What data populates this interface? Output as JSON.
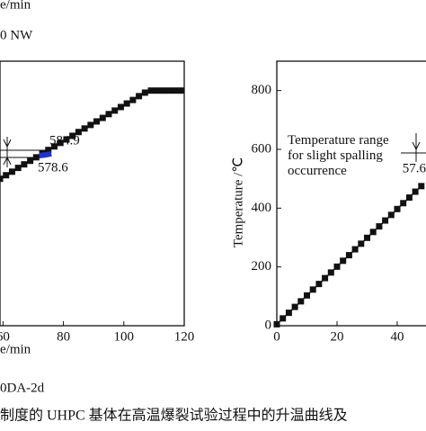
{
  "chart_data": [
    {
      "type": "line",
      "xlabel": "e/min",
      "top_label": "e/min",
      "legend_text": "0 NW",
      "figure_tag": "0DA-2d",
      "xlim": [
        59,
        120
      ],
      "xticks": [
        60,
        80,
        100,
        120
      ],
      "ylim": [
        0,
        900
      ],
      "annotations": [
        "584.9",
        "578.6"
      ],
      "series": [
        {
          "color": "#111111",
          "x": [
            59,
            61,
            63,
            65,
            67,
            69,
            71,
            73,
            75,
            77,
            79,
            81,
            83,
            85,
            87,
            89,
            91,
            93,
            95,
            97,
            99,
            101,
            103,
            105,
            107,
            109,
            111,
            113,
            115,
            117,
            119
          ],
          "values": [
            500,
            512,
            524,
            537,
            549,
            561,
            573,
            585,
            598,
            610,
            622,
            634,
            646,
            659,
            671,
            683,
            695,
            707,
            720,
            732,
            744,
            756,
            768,
            781,
            793,
            800,
            800,
            800,
            800,
            800,
            800
          ]
        },
        {
          "color": "#2233cc",
          "x": [
            72,
            74,
            76
          ],
          "values": [
            578.6,
            581,
            584.9
          ]
        }
      ]
    },
    {
      "type": "line",
      "ylabel": "Temperature /℃",
      "annotation": "Temperature range\nfor slight spalling\noccurrence",
      "annotation_value": "57.6",
      "xlim": [
        0,
        60
      ],
      "xticks": [
        0,
        20,
        40
      ],
      "ylim": [
        0,
        900
      ],
      "yticks": [
        0,
        200,
        400,
        600,
        800
      ],
      "series": [
        {
          "color": "#111111",
          "x": [
            0,
            2,
            4,
            6,
            8,
            10,
            12,
            14,
            16,
            18,
            20,
            22,
            24,
            26,
            28,
            30,
            32,
            34,
            36,
            38,
            40,
            42,
            44,
            46,
            48
          ],
          "values": [
            5,
            25,
            44,
            64,
            83,
            103,
            123,
            142,
            162,
            181,
            201,
            221,
            240,
            260,
            279,
            299,
            319,
            338,
            358,
            377,
            397,
            417,
            436,
            456,
            475
          ]
        }
      ]
    }
  ],
  "caption": "制度的 UHPC 基体在高温爆裂试验过程中的升温曲线及"
}
